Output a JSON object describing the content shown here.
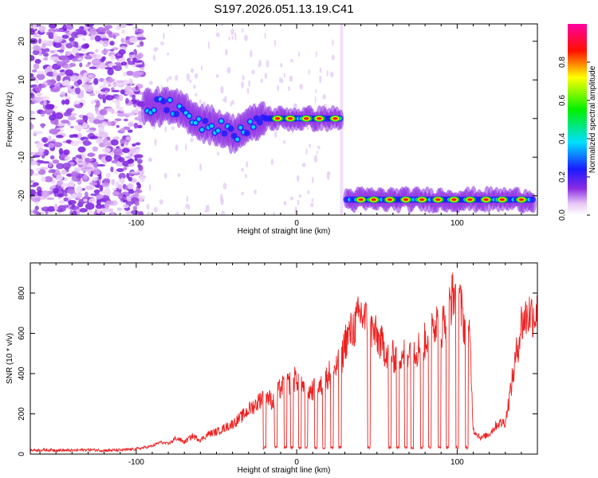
{
  "title": "S197.2026.051.13.19.C41",
  "chart_data": [
    {
      "type": "heatmap",
      "xlabel": "Height of straight line (km)",
      "ylabel": "Frequency (Hz)",
      "xlim": [
        -166,
        150
      ],
      "ylim": [
        -25,
        24.5
      ],
      "xticks": [
        -100,
        0,
        100
      ],
      "xticklabels": [
        "-100",
        "0",
        "100"
      ],
      "yticks": [
        20,
        10,
        0,
        -10,
        -20
      ],
      "yticklabels": [
        "20",
        "10",
        "0",
        "-10",
        "-20"
      ],
      "colorbar": {
        "label": "Normalized spectral amplitude",
        "range": [
          0,
          1
        ],
        "ticks": [
          0.0,
          0.2,
          0.4,
          0.6,
          0.8
        ],
        "ticklabels": [
          "0.0",
          "0.2",
          "0.4",
          "0.6",
          "0.8"
        ],
        "colormap": "rainbow (white-violet-blue-cyan-green-yellow-red-magenta)"
      },
      "ridge": [
        {
          "x": -95,
          "freq": 3
        },
        {
          "x": -80,
          "freq": 3
        },
        {
          "x": -70,
          "freq": 2
        },
        {
          "x": -60,
          "freq": -1
        },
        {
          "x": -50,
          "freq": -2
        },
        {
          "x": -40,
          "freq": -4
        },
        {
          "x": -30,
          "freq": -2
        },
        {
          "x": -20,
          "freq": 0
        },
        {
          "x": -10,
          "freq": 0
        },
        {
          "x": 0,
          "freq": 0
        },
        {
          "x": 10,
          "freq": 0
        },
        {
          "x": 27,
          "freq": 0
        },
        {
          "x": 30,
          "freq": -21
        },
        {
          "x": 150,
          "freq": -21
        }
      ]
    },
    {
      "type": "line",
      "xlabel": "Height of straight line (km)",
      "ylabel": "SNR (10 * v/v)",
      "xlim": [
        -166,
        150
      ],
      "ylim": [
        0,
        950
      ],
      "xticks": [
        -100,
        0,
        100
      ],
      "xticklabels": [
        "-100",
        "0",
        "100"
      ],
      "yticks": [
        0,
        200,
        400,
        600,
        800
      ],
      "yticklabels": [
        "0",
        "200",
        "400",
        "600",
        "800"
      ],
      "series": [
        {
          "name": "SNR",
          "color": "#ee2020",
          "x": [
            -166,
            -150,
            -140,
            -130,
            -120,
            -110,
            -100,
            -90,
            -85,
            -80,
            -75,
            -70,
            -65,
            -60,
            -55,
            -50,
            -45,
            -40,
            -35,
            -30,
            -25,
            -20,
            -15,
            -10,
            -5,
            0,
            5,
            10,
            15,
            20,
            25,
            28,
            30,
            35,
            40,
            45,
            50,
            55,
            60,
            65,
            70,
            75,
            80,
            85,
            90,
            95,
            100,
            105,
            108,
            110,
            115,
            120,
            125,
            130,
            135,
            140,
            145,
            150
          ],
          "values": [
            20,
            20,
            18,
            22,
            18,
            20,
            25,
            40,
            60,
            50,
            80,
            60,
            90,
            70,
            100,
            110,
            130,
            150,
            180,
            220,
            250,
            300,
            260,
            330,
            350,
            380,
            300,
            320,
            330,
            400,
            430,
            470,
            560,
            620,
            700,
            640,
            580,
            520,
            480,
            500,
            520,
            520,
            560,
            680,
            620,
            750,
            820,
            620,
            560,
            120,
            80,
            100,
            150,
            160,
            400,
            650,
            700,
            690
          ]
        }
      ],
      "dropouts": [
        -20,
        -13,
        -7,
        -3,
        2,
        6,
        12,
        17,
        22,
        27,
        45,
        58,
        63,
        68,
        72,
        78,
        83,
        89,
        94,
        100,
        106
      ]
    }
  ]
}
